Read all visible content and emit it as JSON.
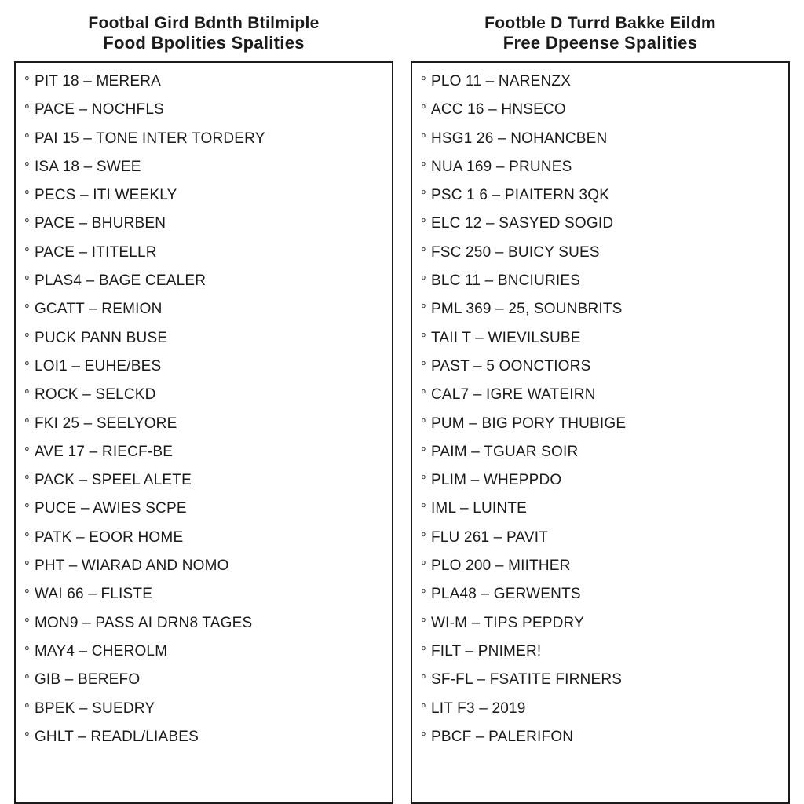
{
  "layout": {
    "page_bg": "#ffffff",
    "text_color": "#1a1a1a",
    "border_color": "#1a1a1a",
    "font_family": "Arial, Helvetica, sans-serif",
    "header_fontsize_line1": 21,
    "header_fontsize_line2": 22,
    "item_fontsize": 19,
    "bullet_glyph": "º"
  },
  "columns": [
    {
      "header_line1": "Footbal Gird Bdnth Btilmiple",
      "header_line2": "Food Bpolities Spalities",
      "items": [
        "PIT 18 – MERERA",
        "PACE – NOCHFLS",
        "PAI 15 – TONE INTER TORDERY",
        "ISA 18 – SWEE",
        "PECS – ITI WEEKLY",
        "PACE – BHURBEN",
        "PACE – ITITELLR",
        "PLAS4 – BAGE CEALER",
        "GCATT – REMION",
        "PUCK PANN BUSE",
        "LOI1 – EUHE/BES",
        "ROCK – SELCKD",
        "FKI 25 – SEELYORE",
        "AVE 17 – RIECF-BE",
        "PACK – SPEEL ALETE",
        "PUCE – AWIES SCPE",
        "PATK – EOOR HOME",
        "PHT – WIARAD AND NOMO",
        "WAI 66 – FLISTE",
        "MON9 – PASS AI DRN8 TAGES",
        "MAY4 – CHEROLM",
        "GIB – BEREFO",
        "BPEK – SUEDRY",
        "GHLT – READL/LIABES"
      ]
    },
    {
      "header_line1": "Footble D Turrd Bakke Eildm",
      "header_line2": "Free Dpeense Spalities",
      "items": [
        "PLO 11 – NARENZX",
        "ACC 16 – HNSECO",
        "HSG1 26 – NOHANCBEN",
        "NUA 169 – PRUNES",
        "PSC 1 6 – PIAITERN 3QK",
        "ELC 12 – SASYED SOGID",
        "FSC 250 – BUICY SUES",
        "BLC 11 – BNCIURIES",
        "PML 369 – 25, SOUNBRITS",
        "TAII T – WIEVILSUBE",
        "PAST – 5 OONCTIORS",
        "CAL7 – IGRE WATEIRN",
        "PUM – BIG PORY THUBIGE",
        "PAIM – TGUAR SOIR",
        "PLIM – WHEPPDO",
        "IML – LUINTE",
        "FLU 261 – PAVIT",
        "PLO 200 – MIITHER",
        "PLA48 – GERWENTS",
        "WI-M – TIPS PEPDRY",
        "FILT – PNIMER!",
        "SF-FL – FSATITE FIRNERS",
        "LIT F3 – 2019",
        "PBCF – PALERIFON"
      ]
    }
  ]
}
